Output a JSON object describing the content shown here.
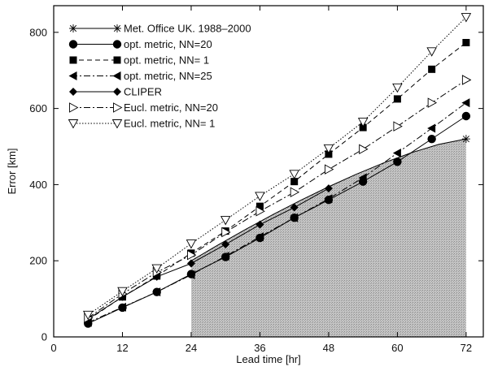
{
  "chart_data": {
    "type": "line",
    "xlabel": "Lead time [hr]",
    "ylabel": "Error [km]",
    "xlim": [
      0,
      75
    ],
    "ylim": [
      0,
      870
    ],
    "xticks": [
      0,
      12,
      24,
      36,
      48,
      60,
      72
    ],
    "yticks": [
      0,
      200,
      400,
      600,
      800
    ],
    "grid": false,
    "legend_position": "top-left",
    "x": [
      6,
      12,
      18,
      24,
      30,
      36,
      42,
      48,
      54,
      60,
      66,
      72
    ],
    "series": [
      {
        "name": "Met. Office UK. 1988–2000",
        "marker": "star",
        "dash": "solid",
        "x": [
          24,
          72
        ],
        "values": [
          200,
          520
        ],
        "shaded_region": true
      },
      {
        "name": "opt. metric, NN=20",
        "marker": "circle-filled",
        "dash": "solid",
        "values": [
          35,
          77,
          118,
          165,
          210,
          260,
          313,
          360,
          408,
          460,
          520,
          580
        ]
      },
      {
        "name": "opt. metric, NN= 1",
        "marker": "square-filled",
        "dash": "dashed",
        "values": [
          45,
          105,
          160,
          220,
          278,
          343,
          408,
          480,
          550,
          625,
          703,
          773
        ]
      },
      {
        "name": "opt. metric, NN=25",
        "marker": "triangle-left-filled",
        "dash": "dashdot",
        "values": [
          38,
          78,
          118,
          163,
          212,
          263,
          313,
          363,
          418,
          483,
          548,
          615
        ]
      },
      {
        "name": "CLIPER",
        "marker": "diamond-filled",
        "dash": "solid",
        "values": [
          47,
          105,
          158,
          193,
          243,
          295,
          340,
          390,
          null,
          null,
          null,
          null
        ]
      },
      {
        "name": "Eucl. metric, NN=20",
        "marker": "triangle-right-open",
        "dash": "dashdot",
        "values": [
          50,
          113,
          170,
          215,
          275,
          330,
          380,
          440,
          493,
          553,
          615,
          675
        ]
      },
      {
        "name": "Eucl. metric, NN= 1",
        "marker": "triangle-down-open",
        "dash": "dotted",
        "values": [
          58,
          120,
          180,
          245,
          307,
          370,
          428,
          495,
          565,
          655,
          750,
          840
        ]
      }
    ]
  }
}
